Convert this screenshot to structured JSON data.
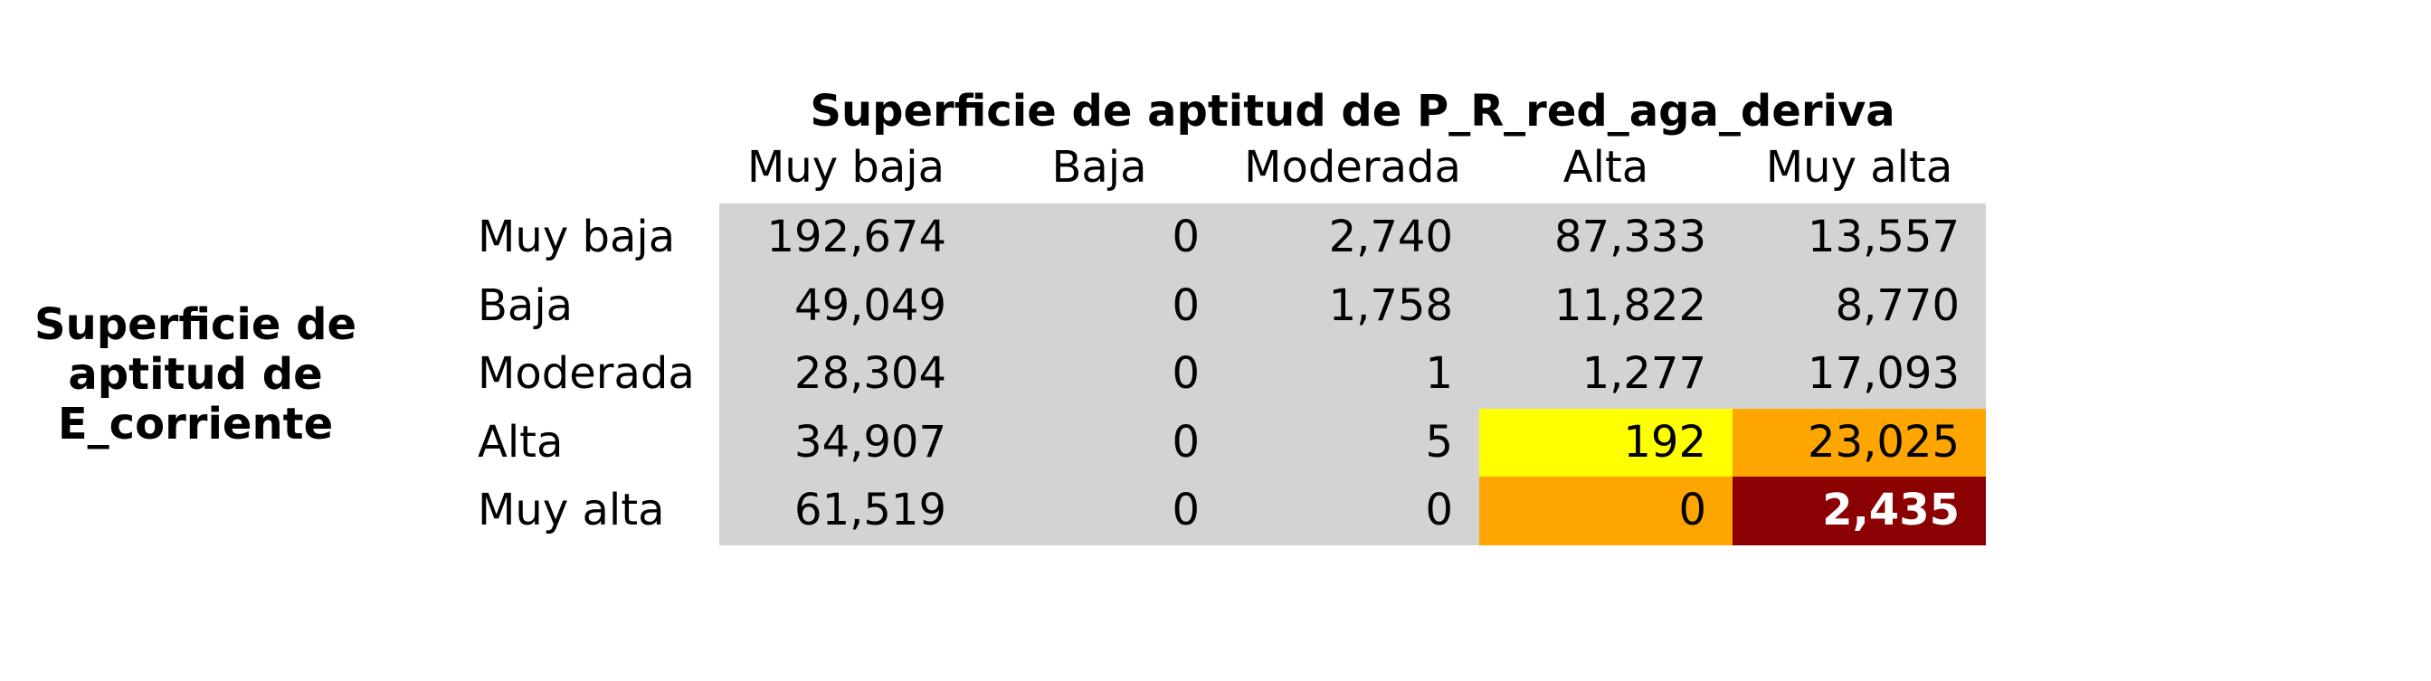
{
  "table": {
    "column_title": "Superficie de aptitud de P_R_red_aga_deriva",
    "row_title_lines": [
      "Superficie de",
      "aptitud de",
      "E_corriente"
    ],
    "columns": [
      "Muy baja",
      "Baja",
      "Moderada",
      "Alta",
      "Muy alta"
    ],
    "row_labels": [
      "Muy baja",
      "Baja",
      "Moderada",
      "Alta",
      "Muy alta"
    ],
    "rows": [
      [
        {
          "text": "192,674",
          "fill": "#d3d3d3"
        },
        {
          "text": "0",
          "fill": "#d3d3d3"
        },
        {
          "text": "2,740",
          "fill": "#d3d3d3"
        },
        {
          "text": "87,333",
          "fill": "#d3d3d3"
        },
        {
          "text": "13,557",
          "fill": "#d3d3d3"
        }
      ],
      [
        {
          "text": "49,049",
          "fill": "#d3d3d3"
        },
        {
          "text": "0",
          "fill": "#d3d3d3"
        },
        {
          "text": "1,758",
          "fill": "#d3d3d3"
        },
        {
          "text": "11,822",
          "fill": "#d3d3d3"
        },
        {
          "text": "8,770",
          "fill": "#d3d3d3"
        }
      ],
      [
        {
          "text": "28,304",
          "fill": "#d3d3d3"
        },
        {
          "text": "0",
          "fill": "#d3d3d3"
        },
        {
          "text": "1",
          "fill": "#d3d3d3"
        },
        {
          "text": "1,277",
          "fill": "#d3d3d3"
        },
        {
          "text": "17,093",
          "fill": "#d3d3d3"
        }
      ],
      [
        {
          "text": "34,907",
          "fill": "#d3d3d3"
        },
        {
          "text": "0",
          "fill": "#d3d3d3"
        },
        {
          "text": "5",
          "fill": "#d3d3d3"
        },
        {
          "text": "192",
          "fill": "#ffff00"
        },
        {
          "text": "23,025",
          "fill": "#ffa500"
        }
      ],
      [
        {
          "text": "61,519",
          "fill": "#d3d3d3"
        },
        {
          "text": "0",
          "fill": "#d3d3d3"
        },
        {
          "text": "0",
          "fill": "#d3d3d3"
        },
        {
          "text": "0",
          "fill": "#ffa500"
        },
        {
          "text": "2,435",
          "fill": "#8b0000",
          "text_color": "#ffffff",
          "bold": true
        }
      ]
    ]
  }
}
